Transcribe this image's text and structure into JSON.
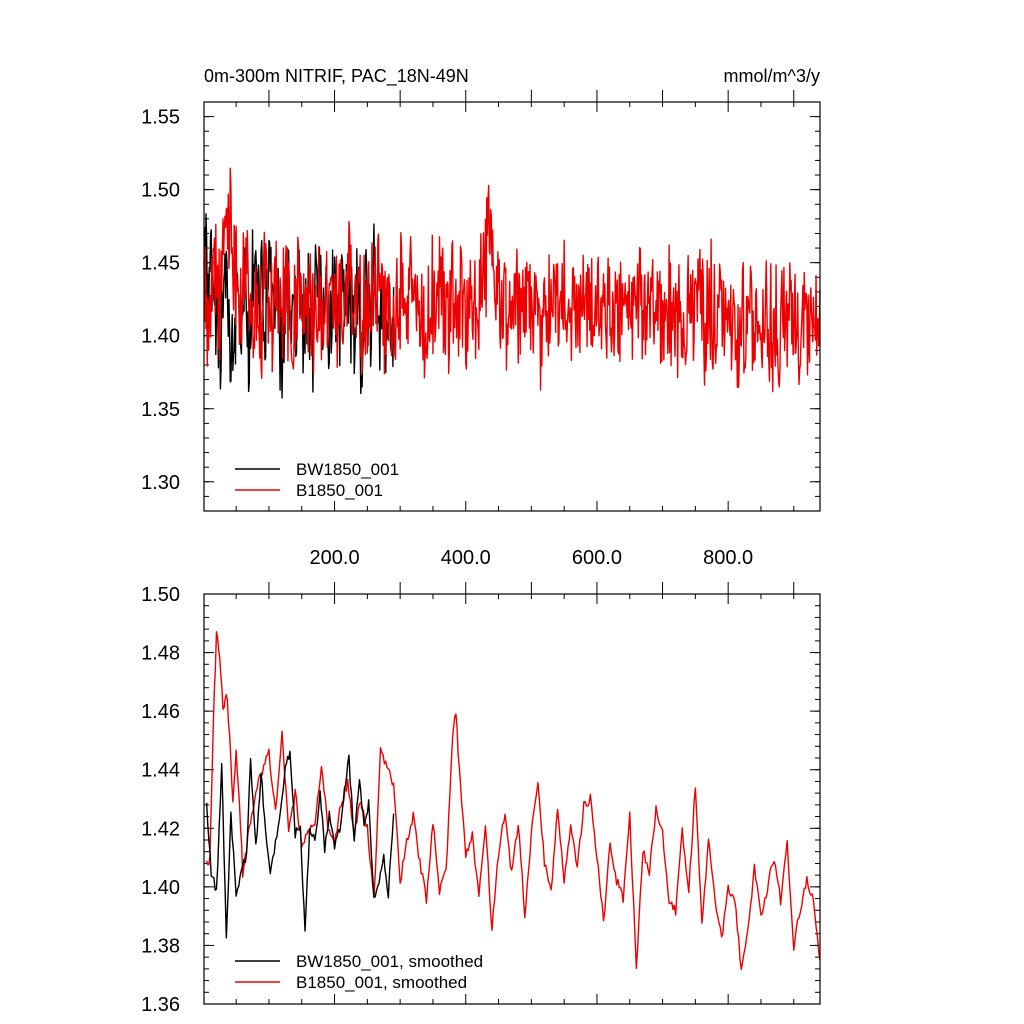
{
  "chart_data": [
    {
      "type": "line",
      "title": "0m-300m NITRIF, PAC_18N-49N",
      "units": "mmol/m^3/y",
      "xlim": [
        1,
        940
      ],
      "ylim": [
        1.28,
        1.56
      ],
      "x_ticks": [
        200,
        400,
        600,
        800
      ],
      "x_tick_labels": [
        "200.0",
        "400.0",
        "600.0",
        "800.0"
      ],
      "y_ticks": [
        1.3,
        1.35,
        1.4,
        1.45,
        1.5,
        1.55
      ],
      "y_tick_labels": [
        "1.30",
        "1.35",
        "1.40",
        "1.45",
        "1.50",
        "1.55"
      ],
      "legend_position": "bottom-left",
      "series": [
        {
          "name": "BW1850_001",
          "color": "#000000",
          "x_range": [
            1,
            290
          ],
          "approx_values": [
            1.47,
            1.45,
            1.44,
            1.43,
            1.38,
            1.37,
            1.42,
            1.45,
            1.38,
            1.36,
            1.44,
            1.42,
            1.4,
            1.46,
            1.37,
            1.45,
            1.5,
            1.41,
            1.44,
            1.38,
            1.47,
            1.42,
            1.4,
            1.44,
            1.37,
            1.43,
            1.48,
            1.41,
            1.39,
            1.46,
            1.42,
            1.38,
            1.44,
            1.4,
            1.37,
            1.45,
            1.49,
            1.41,
            1.43,
            1.39,
            1.47,
            1.42,
            1.38,
            1.44,
            1.4,
            1.46,
            1.41,
            1.39,
            1.43,
            1.38,
            1.45,
            1.42,
            1.4,
            1.44,
            1.39,
            1.41,
            1.45,
            1.38,
            1.42,
            1.4
          ]
        },
        {
          "name": "B1850_001",
          "color": "#ee0000",
          "x_range": [
            1,
            940
          ],
          "approx_values": [
            1.45,
            1.4,
            1.47,
            1.42,
            1.5,
            1.53,
            1.46,
            1.43,
            1.48,
            1.41,
            1.44,
            1.39,
            1.46,
            1.42,
            1.45,
            1.41,
            1.43,
            1.38,
            1.45,
            1.42,
            1.44,
            1.4,
            1.43,
            1.41,
            1.45,
            1.42,
            1.44,
            1.4,
            1.46,
            1.42,
            1.43,
            1.41,
            1.44,
            1.42,
            1.46,
            1.41,
            1.43,
            1.39,
            1.45,
            1.42,
            1.44,
            1.41,
            1.43,
            1.4,
            1.44,
            1.42,
            1.43,
            1.41,
            1.45,
            1.42,
            1.44,
            1.4,
            1.43,
            1.42,
            1.47,
            1.52,
            1.45,
            1.42,
            1.44,
            1.4,
            1.43,
            1.41,
            1.45,
            1.42,
            1.43,
            1.4,
            1.44,
            1.42,
            1.43,
            1.41,
            1.44,
            1.42,
            1.43,
            1.4,
            1.44,
            1.41,
            1.43,
            1.42,
            1.44,
            1.4,
            1.43,
            1.41,
            1.42,
            1.4,
            1.44,
            1.42,
            1.43,
            1.41,
            1.42,
            1.4,
            1.43,
            1.41,
            1.42,
            1.4,
            1.43,
            1.41,
            1.42,
            1.4,
            1.43,
            1.41,
            1.42,
            1.4,
            1.41,
            1.39,
            1.42,
            1.4,
            1.41,
            1.39,
            1.42,
            1.4,
            1.41,
            1.39,
            1.42,
            1.4,
            1.41,
            1.38,
            1.42,
            1.4,
            1.41,
            1.39
          ]
        }
      ]
    },
    {
      "type": "line",
      "xlim": [
        1,
        940
      ],
      "ylim": [
        1.36,
        1.5
      ],
      "y_ticks": [
        1.36,
        1.38,
        1.4,
        1.42,
        1.44,
        1.46,
        1.48,
        1.5
      ],
      "y_tick_labels": [
        "1.36",
        "1.38",
        "1.40",
        "1.42",
        "1.44",
        "1.46",
        "1.48",
        "1.50"
      ],
      "legend_position": "bottom-left",
      "series": [
        {
          "name": "BW1850_001, smoothed",
          "color": "#000000",
          "x": [
            5,
            12,
            20,
            28,
            35,
            42,
            50,
            58,
            66,
            72,
            80,
            88,
            95,
            102,
            110,
            118,
            125,
            132,
            140,
            148,
            155,
            162,
            170,
            178,
            185,
            192,
            200,
            208,
            215,
            222,
            230,
            238,
            245,
            252,
            260,
            268,
            275,
            282,
            290
          ],
          "y": [
            1.428,
            1.405,
            1.398,
            1.441,
            1.383,
            1.424,
            1.398,
            1.405,
            1.411,
            1.444,
            1.413,
            1.438,
            1.42,
            1.404,
            1.416,
            1.426,
            1.44,
            1.447,
            1.418,
            1.42,
            1.384,
            1.42,
            1.415,
            1.432,
            1.412,
            1.425,
            1.413,
            1.42,
            1.432,
            1.444,
            1.416,
            1.438,
            1.42,
            1.428,
            1.395,
            1.402,
            1.41,
            1.398,
            1.425
          ]
        },
        {
          "name": "B1850_001, smoothed",
          "color": "#ee0000",
          "x": [
            5,
            10,
            15,
            20,
            25,
            30,
            35,
            40,
            45,
            50,
            55,
            60,
            70,
            80,
            90,
            100,
            110,
            120,
            130,
            140,
            150,
            160,
            170,
            180,
            190,
            200,
            210,
            220,
            230,
            240,
            250,
            260,
            270,
            280,
            290,
            300,
            310,
            320,
            330,
            340,
            350,
            360,
            370,
            380,
            385,
            390,
            400,
            410,
            420,
            430,
            440,
            450,
            460,
            470,
            480,
            490,
            500,
            510,
            520,
            530,
            540,
            550,
            560,
            570,
            580,
            590,
            600,
            610,
            620,
            630,
            640,
            650,
            660,
            670,
            680,
            690,
            700,
            710,
            720,
            730,
            740,
            750,
            760,
            770,
            780,
            790,
            800,
            810,
            820,
            830,
            840,
            850,
            860,
            870,
            880,
            890,
            900,
            910,
            920,
            930,
            940
          ],
          "y": [
            1.408,
            1.41,
            1.455,
            1.487,
            1.48,
            1.46,
            1.467,
            1.452,
            1.43,
            1.446,
            1.43,
            1.405,
            1.42,
            1.432,
            1.44,
            1.446,
            1.425,
            1.452,
            1.418,
            1.432,
            1.414,
            1.418,
            1.422,
            1.442,
            1.42,
            1.415,
            1.428,
            1.435,
            1.418,
            1.43,
            1.42,
            1.395,
            1.446,
            1.44,
            1.435,
            1.402,
            1.415,
            1.425,
            1.408,
            1.396,
            1.422,
            1.398,
            1.405,
            1.452,
            1.46,
            1.44,
            1.41,
            1.418,
            1.396,
            1.422,
            1.385,
            1.412,
            1.425,
            1.404,
            1.422,
            1.39,
            1.418,
            1.436,
            1.408,
            1.398,
            1.428,
            1.402,
            1.42,
            1.406,
            1.428,
            1.43,
            1.41,
            1.388,
            1.415,
            1.402,
            1.396,
            1.424,
            1.372,
            1.412,
            1.405,
            1.426,
            1.418,
            1.395,
            1.392,
            1.42,
            1.398,
            1.435,
            1.386,
            1.416,
            1.395,
            1.382,
            1.4,
            1.396,
            1.372,
            1.386,
            1.406,
            1.39,
            1.4,
            1.41,
            1.395,
            1.415,
            1.38,
            1.392,
            1.402,
            1.396,
            1.375
          ]
        }
      ]
    }
  ]
}
